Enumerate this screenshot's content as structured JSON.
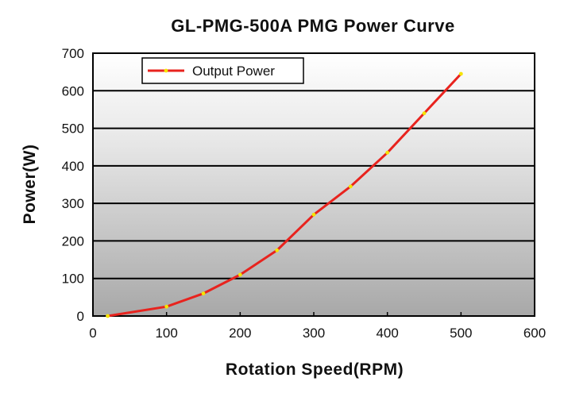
{
  "chart_data": {
    "type": "line",
    "title": "GL-PMG-500A PMG Power Curve",
    "xlabel": "Rotation Speed(RPM)",
    "ylabel": "Power(W)",
    "xlim": [
      0,
      600
    ],
    "ylim": [
      0,
      700
    ],
    "xticks": [
      "0",
      "100",
      "200",
      "300",
      "400",
      "500",
      "600"
    ],
    "yticks": [
      "0",
      "100",
      "200",
      "300",
      "400",
      "500",
      "600",
      "700"
    ],
    "grid": "horizontal",
    "legend_position": "top-left",
    "background": "gradient white to gray",
    "series": [
      {
        "name": "Output Power",
        "color": "#e8231e",
        "marker_color": "#f5e400",
        "x": [
          20,
          100,
          150,
          200,
          250,
          300,
          350,
          400,
          450,
          500
        ],
        "y": [
          0,
          25,
          60,
          110,
          175,
          270,
          345,
          435,
          540,
          645
        ]
      }
    ]
  }
}
